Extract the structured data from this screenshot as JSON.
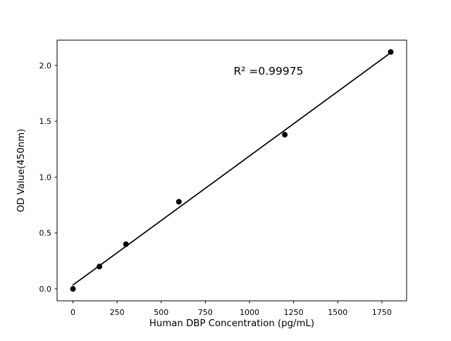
{
  "chart_data": {
    "type": "scatter",
    "title": "",
    "xlabel": "Human DBP Concentration (pg/mL)",
    "ylabel": "OD Value(450nm)",
    "annotation": "R² =0.99975",
    "r_squared": 0.99975,
    "x": [
      0,
      150,
      300,
      600,
      1200,
      1800
    ],
    "y": [
      0.0,
      0.2,
      0.4,
      0.78,
      1.38,
      2.12
    ],
    "fit_line": {
      "slope": 0.001155,
      "intercept": 0.0343,
      "x_range": [
        0,
        1800
      ]
    },
    "xlim": [
      -90,
      1890
    ],
    "ylim": [
      -0.107,
      2.226
    ],
    "xticks": [
      0,
      250,
      500,
      750,
      1000,
      1250,
      1500,
      1750
    ],
    "xtick_labels": [
      "0",
      "250",
      "500",
      "750",
      "1000",
      "1250",
      "1500",
      "1750"
    ],
    "yticks": [
      0.0,
      0.5,
      1.0,
      1.5,
      2.0
    ],
    "ytick_labels": [
      "0.0",
      "0.5",
      "1.0",
      "1.5",
      "2.0"
    ],
    "grid": false,
    "legend": "none",
    "marker_color": "#000000",
    "line_color": "#000000",
    "background_color": "#ffffff"
  }
}
